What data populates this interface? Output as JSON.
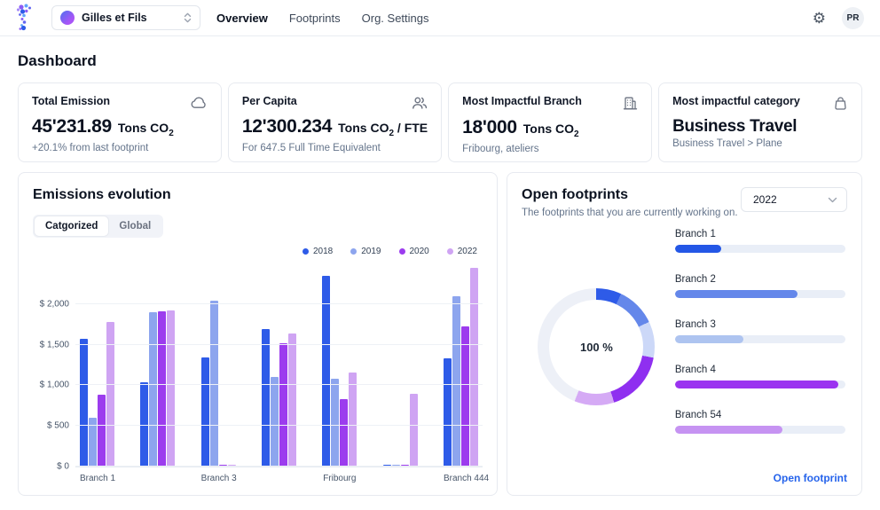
{
  "nav": {
    "org_selector": {
      "label": "Gilles et Fils"
    },
    "items": [
      {
        "label": "Overview",
        "active": true
      },
      {
        "label": "Footprints",
        "active": false
      },
      {
        "label": "Org. Settings",
        "active": false
      }
    ],
    "avatar_initials": "PR"
  },
  "page_title": "Dashboard",
  "stat_cards": [
    {
      "title": "Total Emission",
      "icon": "cloud-icon",
      "value": "45'231.89",
      "unit": "Tons CO",
      "unit_sub": "2",
      "unit_suffix": "",
      "caption": "+20.1% from last footprint"
    },
    {
      "title": "Per Capita",
      "icon": "users-icon",
      "value": "12'300.234",
      "unit": "Tons CO",
      "unit_sub": "2",
      "unit_suffix": " / FTE",
      "caption": "For 647.5 Full Time Equivalent"
    },
    {
      "title": "Most Impactful Branch",
      "icon": "building-icon",
      "value": "18'000",
      "unit": "Tons CO",
      "unit_sub": "2",
      "unit_suffix": "",
      "caption": "Fribourg, ateliers"
    },
    {
      "title": "Most impactful category",
      "icon": "bag-icon",
      "value": "Business Travel",
      "unit": "",
      "unit_sub": "",
      "unit_suffix": "",
      "caption": "Business Travel > Plane"
    }
  ],
  "emissions_panel": {
    "title": "Emissions evolution",
    "tabs": [
      {
        "label": "Catgorized",
        "active": true
      },
      {
        "label": "Global",
        "active": false
      }
    ]
  },
  "chart_data": {
    "type": "bar",
    "title": "Emissions evolution",
    "categories": [
      "Branch 1",
      "",
      "Branch 3",
      "",
      "Fribourg",
      "",
      "Branch 444"
    ],
    "series": [
      {
        "name": "2018",
        "color": "#2e5be8",
        "values": [
          1570,
          1040,
          1340,
          1690,
          2350,
          20,
          1330
        ]
      },
      {
        "name": "2019",
        "color": "#8da5ee",
        "values": [
          600,
          1900,
          2040,
          1100,
          1080,
          20,
          2100
        ]
      },
      {
        "name": "2020",
        "color": "#9c3cee",
        "values": [
          880,
          1915,
          20,
          1520,
          830,
          20,
          1720
        ]
      },
      {
        "name": "2022",
        "color": "#cfa4f3",
        "values": [
          1780,
          1920,
          20,
          1640,
          1160,
          890,
          2450
        ]
      }
    ],
    "yticks": [
      {
        "label": "$ 0",
        "value": 0
      },
      {
        "label": "$ 500",
        "value": 500
      },
      {
        "label": "$ 1,000",
        "value": 1000
      },
      {
        "label": "$ 1,500",
        "value": 1500
      },
      {
        "label": "$ 2,000",
        "value": 2000
      }
    ],
    "ylim": [
      0,
      2500
    ],
    "legend_position": "top-right",
    "grid": true
  },
  "open_footprints": {
    "title": "Open footprints",
    "subtitle": "The footprints that you are currently working on.",
    "year_selected": "2022",
    "donut": {
      "center_label": "100 %",
      "segments": [
        {
          "name": "branch-1",
          "color": "#2e5be8",
          "pct": 7
        },
        {
          "name": "branch-2",
          "color": "#6487ea",
          "pct": 11
        },
        {
          "name": "branch-3",
          "color": "#ccd8f8",
          "pct": 10
        },
        {
          "name": "branch-4",
          "color": "#8f2ff0",
          "pct": 17
        },
        {
          "name": "branch-54",
          "color": "#d5aaf5",
          "pct": 11
        },
        {
          "name": "remaining",
          "color": "#edf0f7",
          "pct": 44
        }
      ]
    },
    "branches": [
      {
        "label": "Branch 1",
        "pct": 27,
        "color": "#2457e6"
      },
      {
        "label": "Branch 2",
        "pct": 72,
        "color": "#6487ea"
      },
      {
        "label": "Branch 3",
        "pct": 40,
        "color": "#aec4f0"
      },
      {
        "label": "Branch 4",
        "pct": 96,
        "color": "#9b33f0"
      },
      {
        "label": "Branch 54",
        "pct": 63,
        "color": "#c693f2"
      }
    ],
    "link_label": "Open footprint"
  }
}
